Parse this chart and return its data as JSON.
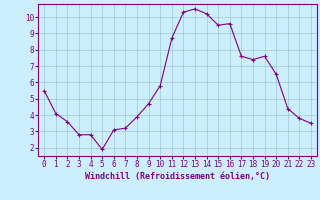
{
  "x": [
    0,
    1,
    2,
    3,
    4,
    5,
    6,
    7,
    8,
    9,
    10,
    11,
    12,
    13,
    14,
    15,
    16,
    17,
    18,
    19,
    20,
    21,
    22,
    23
  ],
  "y": [
    5.5,
    4.1,
    3.6,
    2.8,
    2.8,
    1.9,
    3.1,
    3.2,
    3.9,
    4.7,
    5.8,
    8.7,
    10.3,
    10.5,
    10.2,
    9.5,
    9.6,
    7.6,
    7.4,
    7.6,
    6.5,
    4.4,
    3.8,
    3.5
  ],
  "line_color": "#800080",
  "marker": "+",
  "marker_color": "#800080",
  "bg_color": "#cceeff",
  "grid_color": "#99cccc",
  "xlabel": "Windchill (Refroidissement éolien,°C)",
  "xlabel_color": "#800080",
  "tick_color": "#800080",
  "xlim": [
    -0.5,
    23.5
  ],
  "ylim": [
    1.5,
    10.8
  ],
  "yticks": [
    2,
    3,
    4,
    5,
    6,
    7,
    8,
    9,
    10
  ],
  "xticks": [
    0,
    1,
    2,
    3,
    4,
    5,
    6,
    7,
    8,
    9,
    10,
    11,
    12,
    13,
    14,
    15,
    16,
    17,
    18,
    19,
    20,
    21,
    22,
    23
  ],
  "spine_color": "#800080",
  "font_family": "monospace",
  "tick_fontsize": 5.5,
  "xlabel_fontsize": 6.0
}
